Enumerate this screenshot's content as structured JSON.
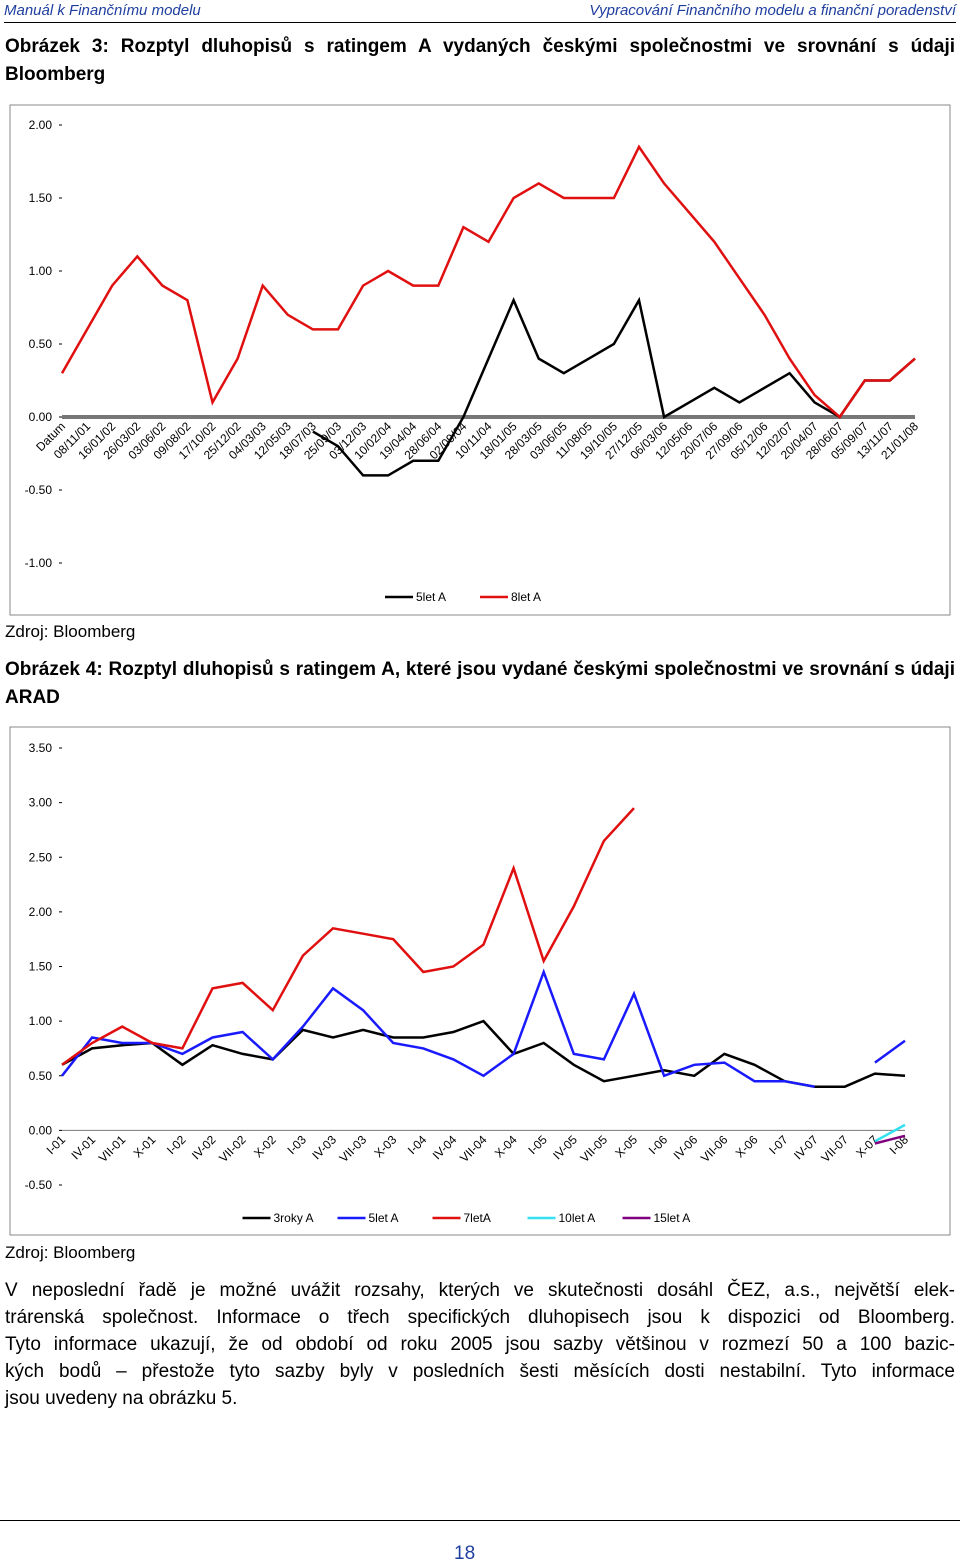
{
  "header": {
    "left": "Manuál k Finančnímu modelu",
    "right": "Vypracování Finančního modelu a finanční poradenství"
  },
  "figures": [
    {
      "caption": "Obrázek 3: Rozptyl dluhopisů s ratingem A vydaných českými společnostmi ve srovnání s údaji Bloomberg",
      "source": "Zdroj: Bloomberg",
      "chart_data": {
        "type": "line",
        "categories": [
          "Datum",
          "08/11/01",
          "16/01/02",
          "26/03/02",
          "03/06/02",
          "09/08/02",
          "17/10/02",
          "25/12/02",
          "04/03/03",
          "12/05/03",
          "18/07/03",
          "25/09/03",
          "03/12/03",
          "10/02/04",
          "19/04/04",
          "28/06/04",
          "02/09/04",
          "10/11/04",
          "18/01/05",
          "28/03/05",
          "03/06/05",
          "11/08/05",
          "19/10/05",
          "27/12/05",
          "06/03/06",
          "12/05/06",
          "20/07/06",
          "27/09/06",
          "05/12/06",
          "12/02/07",
          "20/04/07",
          "28/06/07",
          "05/09/07",
          "13/11/07",
          "21/01/08"
        ],
        "series": [
          {
            "name": "5let A",
            "color": "#000000",
            "values": [
              null,
              null,
              null,
              null,
              null,
              null,
              null,
              null,
              null,
              null,
              -0.1,
              -0.2,
              -0.4,
              -0.4,
              -0.3,
              -0.3,
              0.0,
              0.4,
              0.8,
              0.4,
              0.3,
              0.4,
              0.5,
              0.8,
              0.0,
              0.1,
              0.2,
              0.1,
              0.2,
              0.3,
              0.1,
              0.0,
              0.25,
              0.25,
              0.4
            ]
          },
          {
            "name": "8let A",
            "color": "#e01010",
            "values": [
              0.3,
              0.6,
              0.9,
              1.1,
              0.9,
              0.8,
              0.1,
              0.4,
              0.9,
              0.7,
              0.6,
              0.6,
              0.9,
              1.0,
              0.9,
              0.9,
              1.3,
              1.2,
              1.5,
              1.6,
              1.5,
              1.5,
              1.5,
              1.85,
              1.6,
              1.4,
              1.2,
              0.95,
              0.7,
              0.4,
              0.15,
              0.0,
              0.25,
              0.25,
              0.4
            ]
          }
        ],
        "ylim": [
          -1,
          2
        ],
        "yticks": [
          {
            "value": -1,
            "label": "-1.00"
          },
          {
            "value": -0.5,
            "label": "-0.50"
          },
          {
            "value": 0,
            "label": "0.00"
          },
          {
            "value": 0.5,
            "label": "0.50"
          },
          {
            "value": 1,
            "label": "1.00"
          },
          {
            "value": 1.5,
            "label": "1.50"
          },
          {
            "value": 2,
            "label": "2.00"
          }
        ]
      }
    },
    {
      "caption": "Obrázek 4: Rozptyl dluhopisů s ratingem A, které jsou vydané českými společnostmi ve srovnání s údaji ARAD",
      "source": "Zdroj: Bloomberg",
      "chart_data": {
        "type": "line",
        "categories": [
          "I-01",
          "IV-01",
          "VII-01",
          "X-01",
          "I-02",
          "IV-02",
          "VII-02",
          "X-02",
          "I-03",
          "IV-03",
          "VII-03",
          "X-03",
          "I-04",
          "IV-04",
          "VII-04",
          "X-04",
          "I-05",
          "IV-05",
          "VII-05",
          "X-05",
          "I-06",
          "IV-06",
          "VII-06",
          "X-06",
          "I-07",
          "IV-07",
          "VII-07",
          "X-07",
          "I-08"
        ],
        "series": [
          {
            "name": "3roky A",
            "color": "#000000",
            "values": [
              0.6,
              0.75,
              0.78,
              0.8,
              0.6,
              0.78,
              0.7,
              0.65,
              0.92,
              0.85,
              0.92,
              0.85,
              0.85,
              0.9,
              1.0,
              0.7,
              0.8,
              0.6,
              0.45,
              0.5,
              0.55,
              0.5,
              0.7,
              0.6,
              0.45,
              0.4,
              0.4,
              0.52,
              0.5
            ]
          },
          {
            "name": "5let A",
            "color": "#1a1aff",
            "values": [
              0.5,
              0.85,
              0.8,
              0.8,
              0.7,
              0.85,
              0.9,
              0.65,
              0.95,
              1.3,
              1.1,
              0.8,
              0.75,
              0.65,
              0.5,
              0.7,
              1.45,
              0.7,
              0.65,
              1.25,
              0.5,
              0.6,
              0.62,
              0.45,
              0.45,
              0.4,
              null,
              0.62,
              0.82
            ]
          },
          {
            "name": "7letA",
            "color": "#e01010",
            "values": [
              0.6,
              0.8,
              0.95,
              0.8,
              0.75,
              1.3,
              1.35,
              1.1,
              1.6,
              1.85,
              1.8,
              1.75,
              1.45,
              1.5,
              1.7,
              2.4,
              1.55,
              2.05,
              2.65,
              2.95,
              null,
              null,
              null,
              null,
              null,
              null,
              null,
              null,
              null
            ]
          },
          {
            "name": "10let A",
            "color": "#33e0f0",
            "values": [
              null,
              null,
              null,
              null,
              null,
              null,
              null,
              null,
              null,
              null,
              null,
              null,
              null,
              null,
              null,
              null,
              null,
              null,
              null,
              null,
              null,
              null,
              null,
              null,
              null,
              null,
              null,
              -0.1,
              0.05
            ]
          },
          {
            "name": "15let A",
            "color": "#800080",
            "values": [
              null,
              null,
              null,
              null,
              null,
              null,
              null,
              null,
              null,
              null,
              null,
              null,
              null,
              null,
              null,
              null,
              null,
              null,
              null,
              null,
              null,
              null,
              null,
              null,
              null,
              null,
              null,
              -0.12,
              -0.05
            ]
          }
        ],
        "ylim": [
          -0.5,
          3.5
        ],
        "yticks": [
          {
            "value": -0.5,
            "label": "-0.50"
          },
          {
            "value": 0,
            "label": "0.00"
          },
          {
            "value": 0.5,
            "label": "0.50"
          },
          {
            "value": 1,
            "label": "1.00"
          },
          {
            "value": 1.5,
            "label": "1.50"
          },
          {
            "value": 2,
            "label": "2.00"
          },
          {
            "value": 2.5,
            "label": "2.50"
          },
          {
            "value": 3,
            "label": "3.00"
          },
          {
            "value": 3.5,
            "label": "3.50"
          }
        ]
      }
    }
  ],
  "paragraph": [
    "V neposlední řadě je možné uvážit rozsahy, kterých ve skutečnosti dosáhl ČEZ, a.s., největší elek-",
    "trárenská společnost. Informace o třech specifických dluhopisech jsou k dispozici od Bloomberg.",
    "Tyto informace ukazují, že od období od roku 2005 jsou sazby většinou v rozmezí 50 a 100 bazic-",
    "kých bodů – přestože tyto sazby byly v posledních šesti měsících dosti nestabilní. Tyto informace",
    "jsou uvedeny na obrázku 5."
  ],
  "page_number": "18"
}
